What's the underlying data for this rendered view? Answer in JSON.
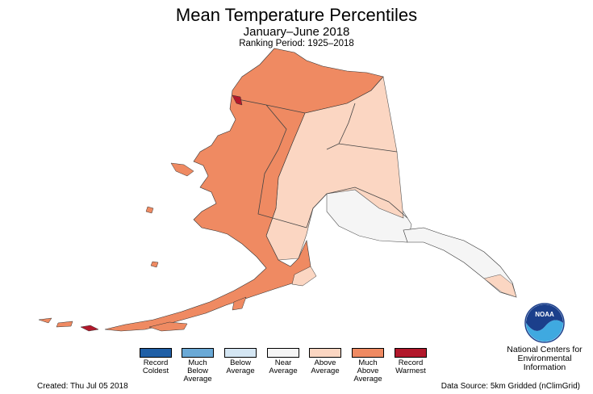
{
  "header": {
    "title": "Mean Temperature Percentiles",
    "subtitle": "January–June 2018",
    "period": "Ranking Period: 1925–2018"
  },
  "legend": [
    {
      "label": "Record\nColdest",
      "color": "#1f5fa6"
    },
    {
      "label": "Much\nBelow\nAverage",
      "color": "#6aa9d6"
    },
    {
      "label": "Below\nAverage",
      "color": "#d4e6f3"
    },
    {
      "label": "Near\nAverage",
      "color": "#f5f5f5"
    },
    {
      "label": "Above\nAverage",
      "color": "#fbd6c2"
    },
    {
      "label": "Much\nAbove\nAverage",
      "color": "#ef8a62"
    },
    {
      "label": "Record\nWarmest",
      "color": "#b2182b"
    }
  ],
  "footer": {
    "created": "Created: Thu Jul 05 2018",
    "source": "Data Source: 5km Gridded (nClimGrid)"
  },
  "logo": {
    "text": "NOAA",
    "agency": "National Centers for\nEnvironmental\nInformation"
  },
  "map_colors": {
    "much_above": "#ef8a62",
    "above": "#fbd6c2",
    "near": "#f5f5f5",
    "record_warm": "#b2182b"
  }
}
